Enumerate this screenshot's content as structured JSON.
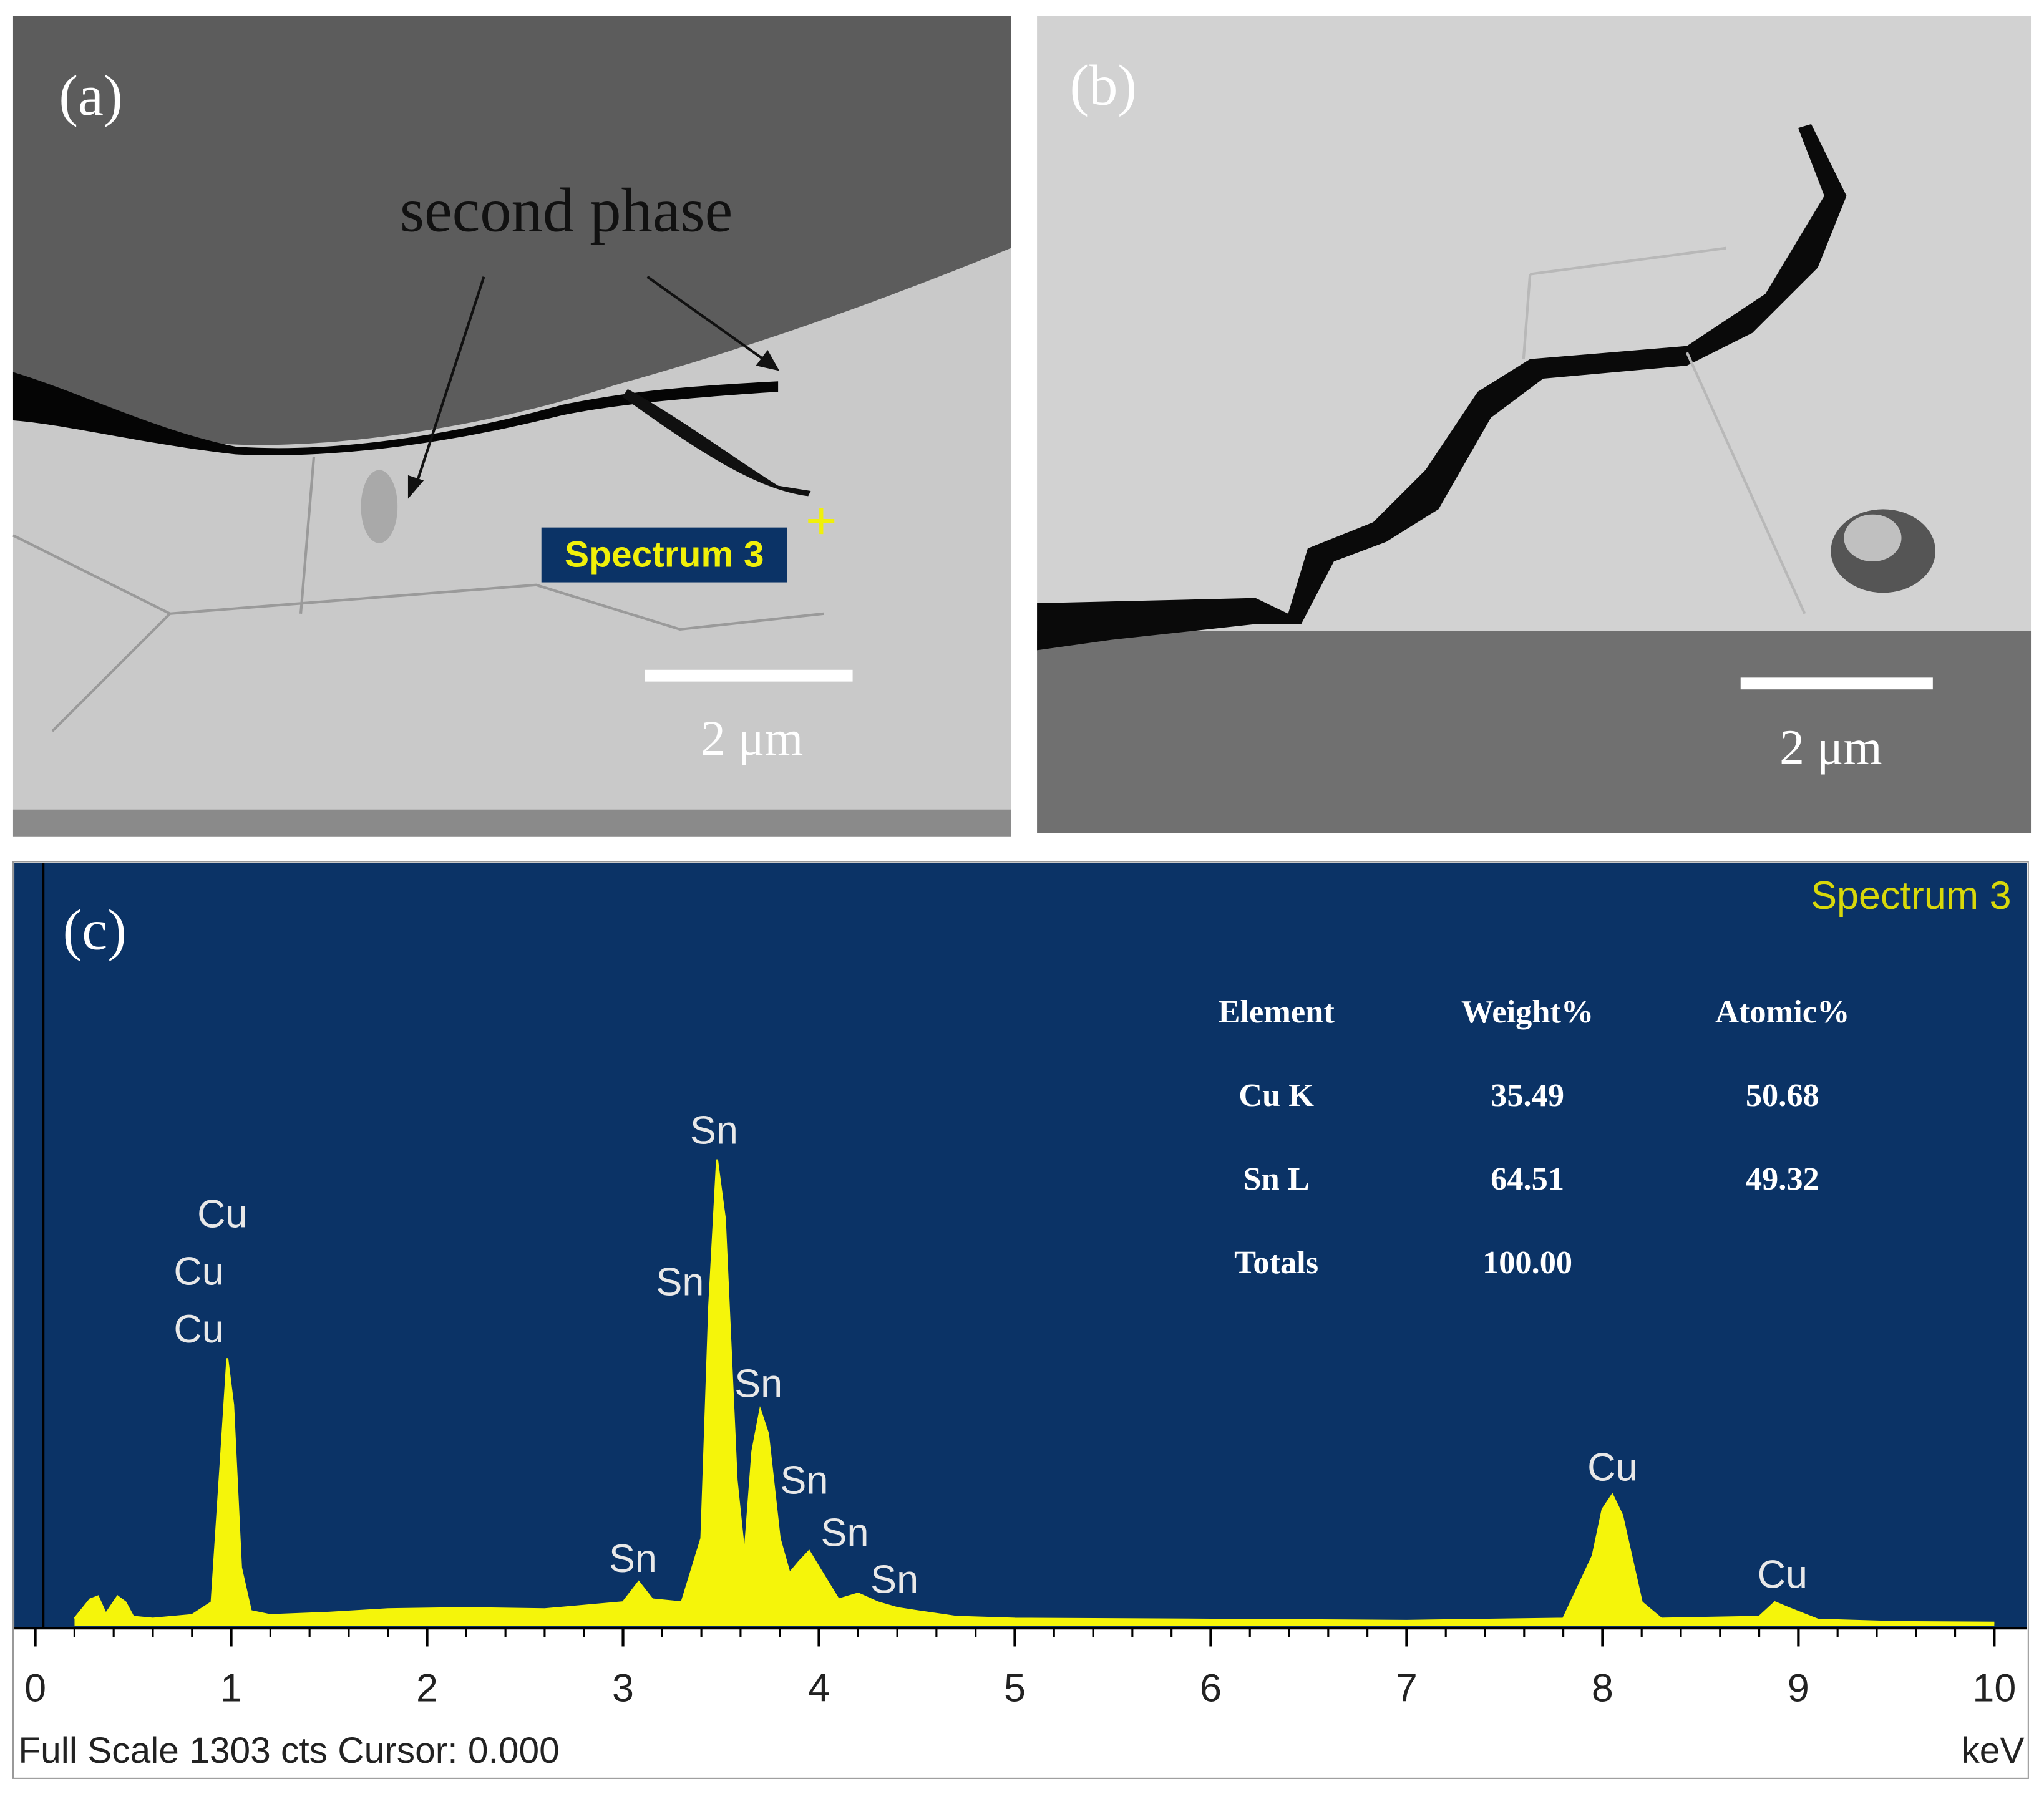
{
  "panel_a": {
    "label": "(a)",
    "annotation": "second phase",
    "spectrum_marker": "Spectrum 3",
    "scale_bar": "2 μm"
  },
  "panel_b": {
    "label": "(b)",
    "scale_bar": "2 μm"
  },
  "chart_data": {
    "type": "area",
    "label": "(c)",
    "title": "Spectrum 3",
    "x_label": "keV",
    "footer": "Full Scale 1303 cts Cursor: 0.000",
    "color": "#f5f50a",
    "background": "#0b3366",
    "x": [
      0.2,
      0.28,
      0.32,
      0.36,
      0.42,
      0.46,
      0.5,
      0.6,
      0.8,
      0.9,
      0.95,
      0.98,
      1.01,
      1.05,
      1.1,
      1.2,
      1.5,
      1.8,
      2.2,
      2.6,
      3.0,
      3.08,
      3.15,
      3.3,
      3.4,
      3.44,
      3.48,
      3.52,
      3.58,
      3.62,
      3.66,
      3.7,
      3.74,
      3.8,
      3.85,
      3.9,
      3.95,
      4.0,
      4.1,
      4.2,
      4.3,
      4.4,
      4.5,
      4.7,
      5,
      6,
      7,
      7.8,
      7.95,
      8.0,
      8.05,
      8.1,
      8.2,
      8.3,
      8.8,
      8.88,
      8.95,
      9.1,
      9.5,
      10
    ],
    "values": [
      12,
      45,
      50,
      20,
      50,
      40,
      15,
      12,
      18,
      40,
      300,
      460,
      380,
      100,
      25,
      18,
      22,
      28,
      30,
      28,
      40,
      75,
      45,
      40,
      150,
      550,
      802,
      700,
      250,
      120,
      300,
      371,
      330,
      150,
      90,
      110,
      128,
      100,
      45,
      55,
      40,
      30,
      25,
      15,
      12,
      10,
      8,
      12,
      120,
      200,
      225,
      190,
      40,
      12,
      15,
      40,
      30,
      10,
      6,
      5
    ],
    "xlim": [
      0,
      10
    ],
    "xticks": [
      0,
      1,
      2,
      3,
      4,
      5,
      6,
      7,
      8,
      9,
      10
    ],
    "ylim": [
      0,
      1303
    ],
    "peak_labels": [
      "Cu",
      "Cu",
      "Cu",
      "Sn",
      "Sn",
      "Sn",
      "Sn",
      "Sn",
      "Sn",
      "Sn",
      "Cu",
      "Cu"
    ],
    "table": {
      "header": [
        "Element",
        "Weight%",
        "Atomic%"
      ],
      "rows": [
        [
          "Cu K",
          "35.49",
          "50.68"
        ],
        [
          "Sn L",
          "64.51",
          "49.32"
        ],
        [
          "Totals",
          "100.00"
        ]
      ]
    }
  }
}
